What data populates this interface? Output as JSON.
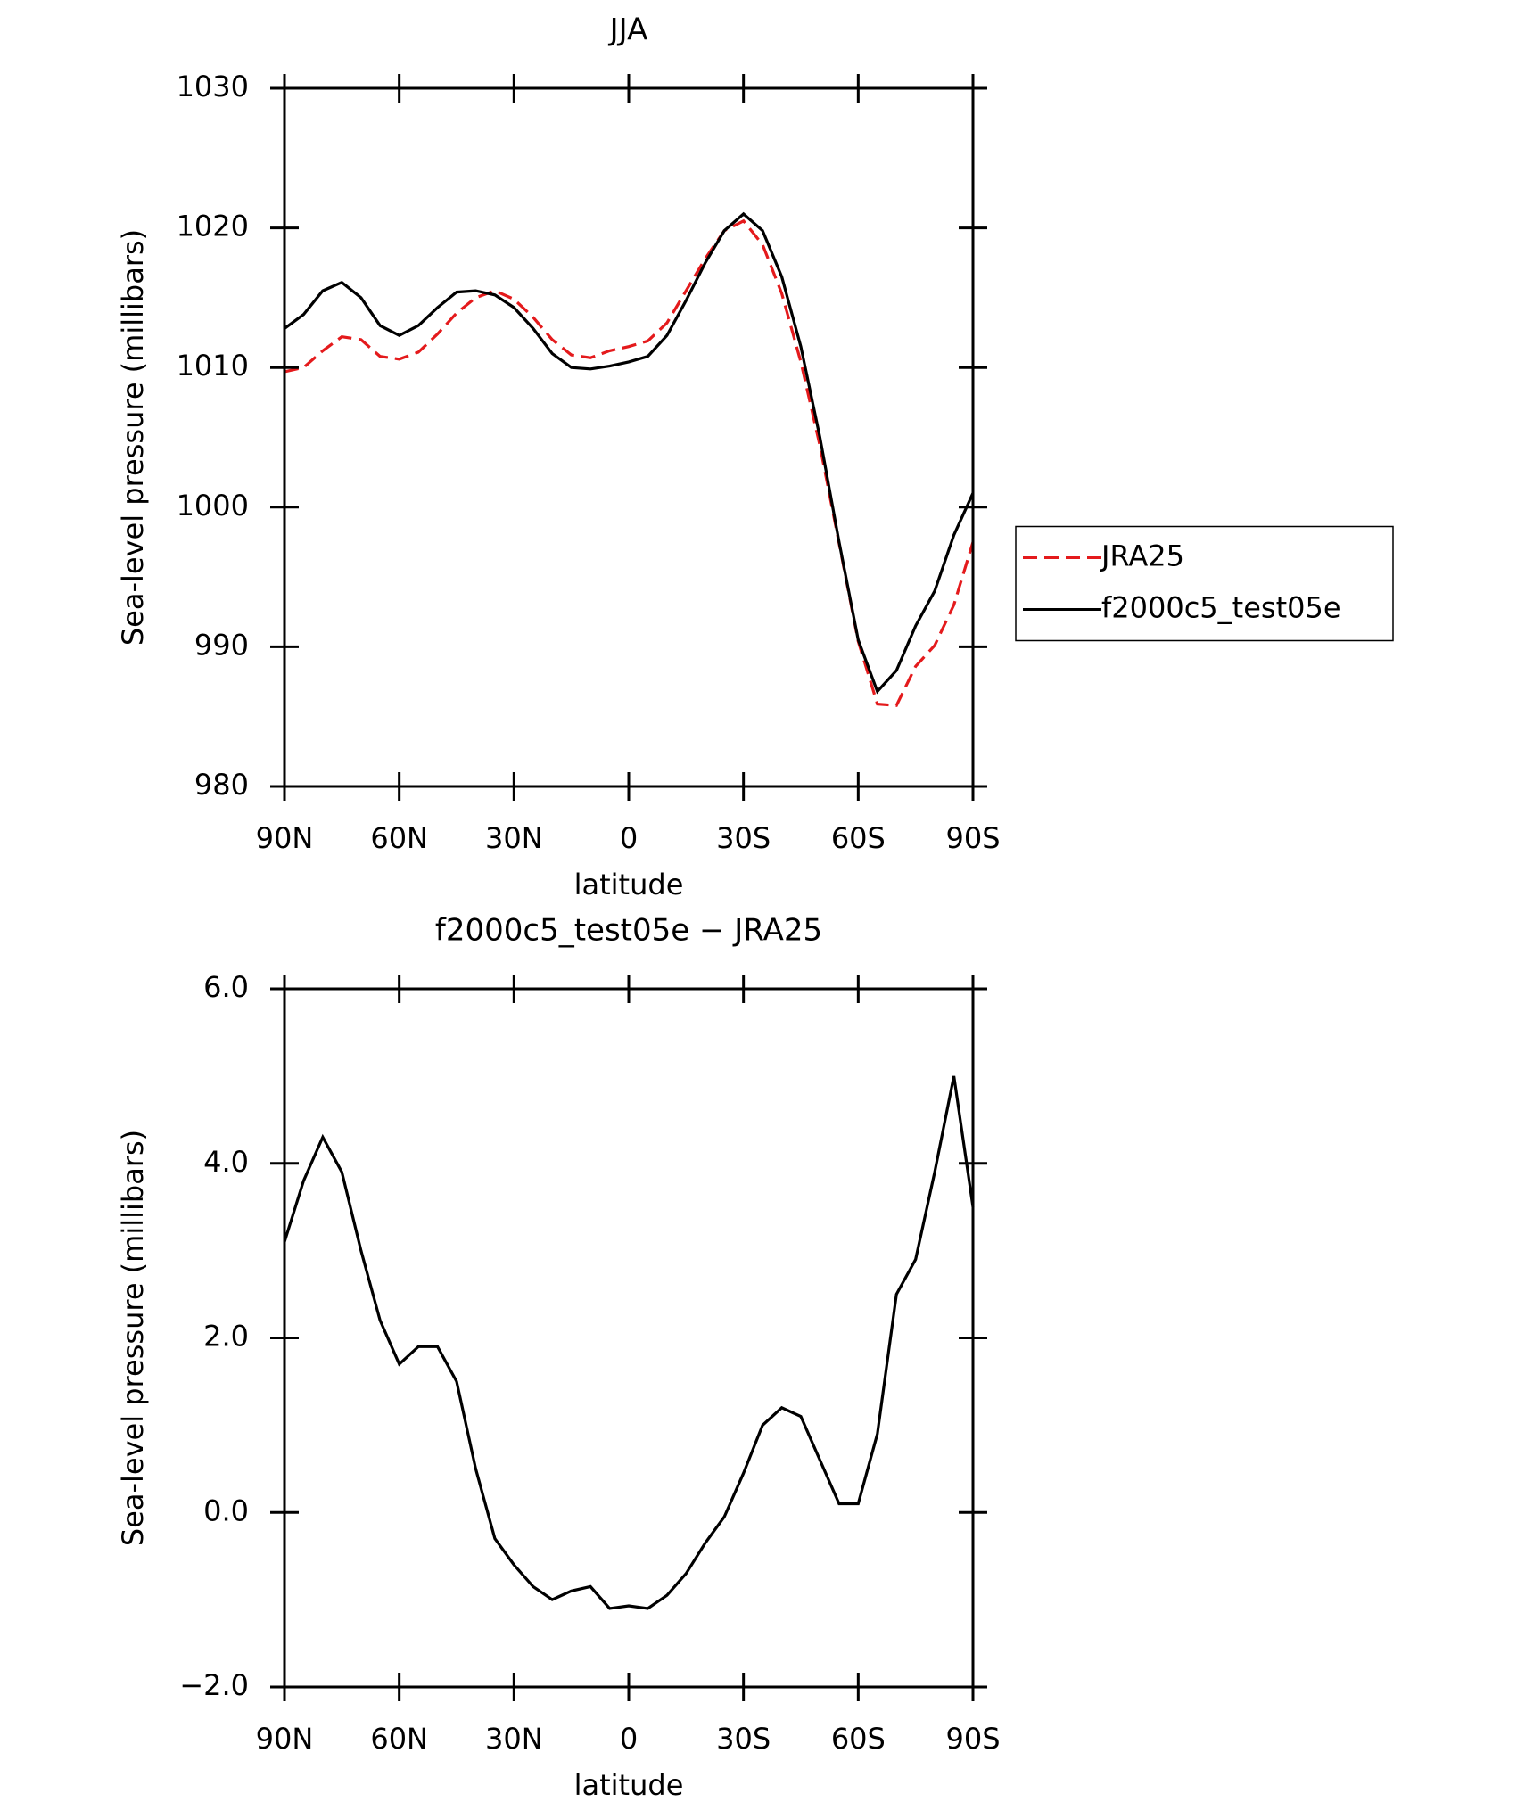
{
  "chart_data": [
    {
      "type": "line",
      "title": "JJA",
      "xlabel": "latitude",
      "ylabel": "Sea-level pressure (millibars)",
      "x": [
        90,
        85,
        80,
        75,
        70,
        65,
        60,
        55,
        50,
        45,
        40,
        35,
        30,
        25,
        20,
        15,
        10,
        5,
        0,
        -5,
        -10,
        -15,
        -20,
        -25,
        -30,
        -35,
        -40,
        -45,
        -50,
        -55,
        -60,
        -65,
        -70,
        -75,
        -80,
        -85,
        -90
      ],
      "series": [
        {
          "name": "JRA25",
          "color": "#e41a1c",
          "linestyle": "dashed",
          "values": [
            1009.7,
            1010.0,
            1011.2,
            1012.2,
            1012.0,
            1010.8,
            1010.6,
            1011.1,
            1012.4,
            1013.9,
            1015.0,
            1015.5,
            1014.9,
            1013.6,
            1012.0,
            1010.9,
            1010.7,
            1011.2,
            1011.5,
            1011.9,
            1013.2,
            1015.5,
            1017.8,
            1019.8,
            1020.5,
            1018.8,
            1015.3,
            1010.4,
            1004.4,
            997.4,
            990.4,
            985.9,
            985.8,
            988.6,
            990.1,
            993.0,
            997.5
          ]
        },
        {
          "name": "f2000c5_test05e",
          "color": "#000000",
          "linestyle": "solid",
          "values": [
            1012.8,
            1013.8,
            1015.5,
            1016.1,
            1015.0,
            1013.0,
            1012.3,
            1013.0,
            1014.3,
            1015.4,
            1015.5,
            1015.2,
            1014.3,
            1012.8,
            1011.0,
            1010.0,
            1009.9,
            1010.1,
            1010.4,
            1010.8,
            1012.3,
            1014.8,
            1017.5,
            1019.8,
            1021.0,
            1019.8,
            1016.5,
            1011.5,
            1005.0,
            997.5,
            990.5,
            986.8,
            988.3,
            991.5,
            994.0,
            998.0,
            1001.0
          ]
        }
      ],
      "xlim": [
        90,
        -90
      ],
      "xticks": [
        {
          "value": 90,
          "label": "90N"
        },
        {
          "value": 60,
          "label": "60N"
        },
        {
          "value": 30,
          "label": "30N"
        },
        0,
        {
          "value": -30,
          "label": "30S"
        },
        {
          "value": -60,
          "label": "60S"
        },
        {
          "value": -90,
          "label": "90S"
        }
      ],
      "ylim": [
        980,
        1030
      ],
      "yticks": [
        980,
        990,
        1000,
        1010,
        1020,
        1030
      ],
      "legend": "right"
    },
    {
      "type": "line",
      "title": "f2000c5_test05e − JRA25",
      "xlabel": "latitude",
      "ylabel": "Sea-level pressure (millibars)",
      "x": [
        90,
        85,
        80,
        75,
        70,
        65,
        60,
        55,
        50,
        45,
        40,
        35,
        30,
        25,
        20,
        15,
        10,
        5,
        0,
        -5,
        -10,
        -15,
        -20,
        -25,
        -30,
        -35,
        -40,
        -45,
        -50,
        -55,
        -60,
        -65,
        -70,
        -75,
        -80,
        -85,
        -90
      ],
      "series": [
        {
          "color": "#000000",
          "linestyle": "solid",
          "values": [
            3.1,
            3.8,
            4.3,
            3.9,
            3.0,
            2.2,
            1.7,
            1.9,
            1.9,
            1.5,
            0.5,
            -0.3,
            -0.6,
            -0.85,
            -1.0,
            -0.9,
            -0.85,
            -1.1,
            -1.07,
            -1.1,
            -0.95,
            -0.7,
            -0.35,
            -0.05,
            0.45,
            1.0,
            1.2,
            1.1,
            0.6,
            0.1,
            0.1,
            0.9,
            2.5,
            2.9,
            3.9,
            5.0,
            3.5
          ]
        }
      ],
      "xlim": [
        90,
        -90
      ],
      "xticks": [
        {
          "value": 90,
          "label": "90N"
        },
        {
          "value": 60,
          "label": "60N"
        },
        {
          "value": 30,
          "label": "30N"
        },
        0,
        {
          "value": -30,
          "label": "30S"
        },
        {
          "value": -60,
          "label": "60S"
        },
        {
          "value": -90,
          "label": "90S"
        }
      ],
      "ylim": [
        -2,
        6
      ],
      "yticks": [
        {
          "value": -2,
          "label": "−2.0"
        },
        {
          "value": 0,
          "label": "0.0"
        },
        {
          "value": 2,
          "label": "2.0"
        },
        {
          "value": 4,
          "label": "4.0"
        },
        {
          "value": 6,
          "label": "6.0"
        }
      ]
    }
  ]
}
